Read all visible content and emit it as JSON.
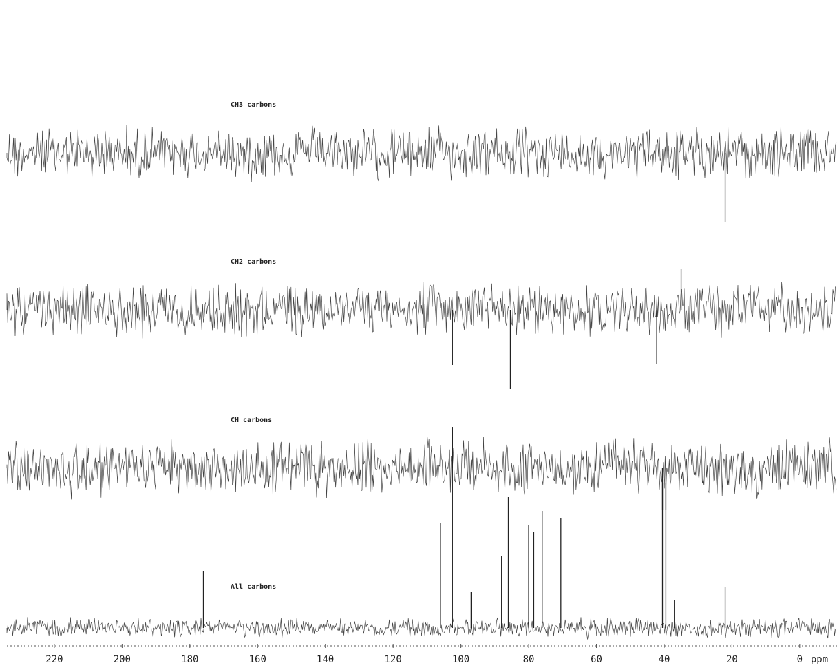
{
  "chart_data": {
    "type": "spectrum",
    "x_label": "ppm",
    "color": "#222",
    "xlim": [
      234,
      -11
    ],
    "xticks": [
      220,
      200,
      180,
      160,
      140,
      120,
      100,
      80,
      60,
      40,
      20,
      0
    ],
    "series": [
      {
        "name": "CH3 carbons",
        "peaks_x": [
          22
        ],
        "values": [
          -100
        ]
      },
      {
        "name": "CH2 carbons",
        "peaks_x": [
          102.5,
          85.4,
          42.2,
          35
        ],
        "values": [
          -80,
          -115,
          -78,
          60
        ]
      },
      {
        "name": "CH carbons",
        "peaks_x": [
          102.5,
          40.5,
          39.5
        ],
        "values": [
          60,
          -60,
          -60
        ]
      },
      {
        "name": "All carbons",
        "peaks_x": [
          176,
          106,
          102.5,
          97,
          88,
          86,
          80,
          78.5,
          76,
          70.5,
          40.5,
          39.5,
          37,
          22
        ],
        "values": [
          82,
          153,
          290,
          52,
          105,
          190,
          150,
          140,
          170,
          160,
          210,
          210,
          40,
          60
        ]
      }
    ]
  }
}
